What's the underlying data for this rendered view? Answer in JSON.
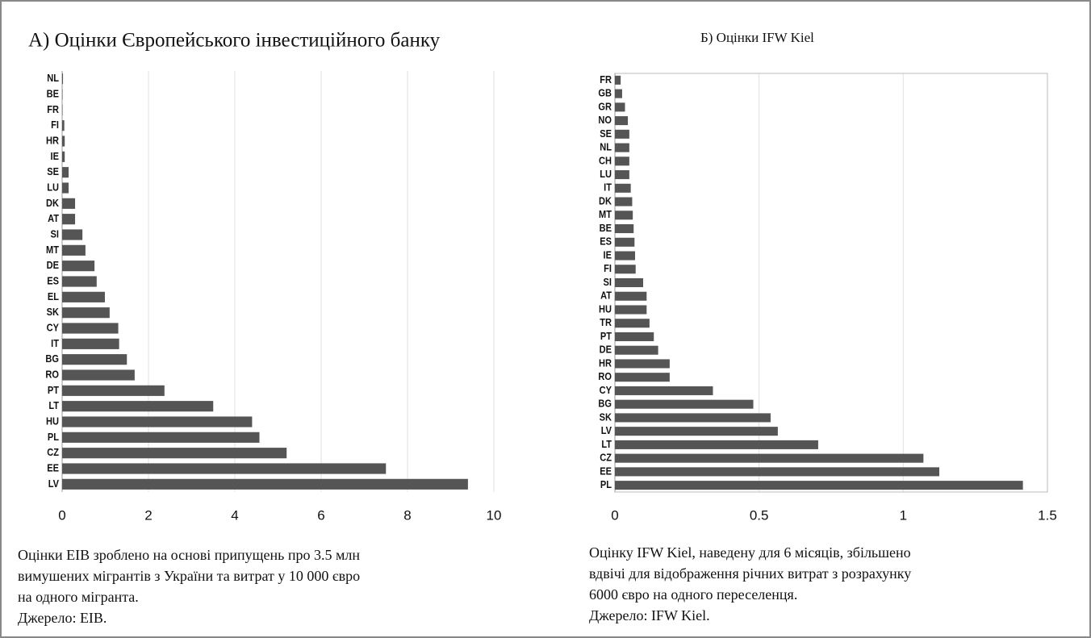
{
  "chart_data": [
    {
      "type": "bar",
      "orientation": "horizontal",
      "title": "А) Оцінки Європейського інвестиційного банку",
      "categories": [
        "NL",
        "BE",
        "FR",
        "FI",
        "HR",
        "IE",
        "SE",
        "LU",
        "DK",
        "AT",
        "SI",
        "MT",
        "DE",
        "ES",
        "EL",
        "SK",
        "CY",
        "IT",
        "BG",
        "RO",
        "PT",
        "LT",
        "HU",
        "PL",
        "CZ",
        "EE",
        "LV"
      ],
      "values": [
        0.02,
        0.01,
        0.01,
        0.05,
        0.06,
        0.06,
        0.15,
        0.15,
        0.3,
        0.3,
        0.47,
        0.54,
        0.75,
        0.8,
        0.99,
        1.1,
        1.3,
        1.32,
        1.5,
        1.68,
        2.37,
        3.5,
        4.4,
        4.57,
        5.2,
        7.5,
        9.4
      ],
      "color": "#555555",
      "xlim": [
        0,
        10
      ],
      "xticks": [
        0,
        2,
        4,
        6,
        8,
        10
      ],
      "grid": true,
      "note": [
        "Оцінки EIB зроблено на основі припущень про 3.5 млн",
        "вимушених мігрантів з України та витрат у 10 000 євро",
        "на одного мігранта.",
        "Джерело: EIB."
      ]
    },
    {
      "type": "bar",
      "orientation": "horizontal",
      "title": "Б) Оцінки IFW Kiel",
      "categories": [
        "FR",
        "GB",
        "GR",
        "NO",
        "SE",
        "NL",
        "CH",
        "LU",
        "IT",
        "DK",
        "MT",
        "BE",
        "ES",
        "IE",
        "FI",
        "SI",
        "AT",
        "HU",
        "TR",
        "PT",
        "DE",
        "HR",
        "RO",
        "CY",
        "BG",
        "SK",
        "LV",
        "LT",
        "CZ",
        "EE",
        "PL"
      ],
      "values": [
        0.02,
        0.025,
        0.035,
        0.045,
        0.05,
        0.05,
        0.05,
        0.05,
        0.055,
        0.06,
        0.062,
        0.065,
        0.068,
        0.07,
        0.072,
        0.098,
        0.11,
        0.11,
        0.12,
        0.135,
        0.15,
        0.19,
        0.19,
        0.34,
        0.48,
        0.54,
        0.565,
        0.705,
        1.07,
        1.125,
        1.415
      ],
      "color": "#555555",
      "xlim": [
        0,
        1.5
      ],
      "xticks": [
        0,
        0.5,
        1,
        1.5
      ],
      "grid": true,
      "note": [
        "Оцінку IFW Kiel, наведену для 6 місяців, збільшено",
        "вдвічі для відображення річних витрат з розрахунку",
        "6000 євро на одного переселенця.",
        "Джерело: IFW Kiel."
      ]
    }
  ]
}
